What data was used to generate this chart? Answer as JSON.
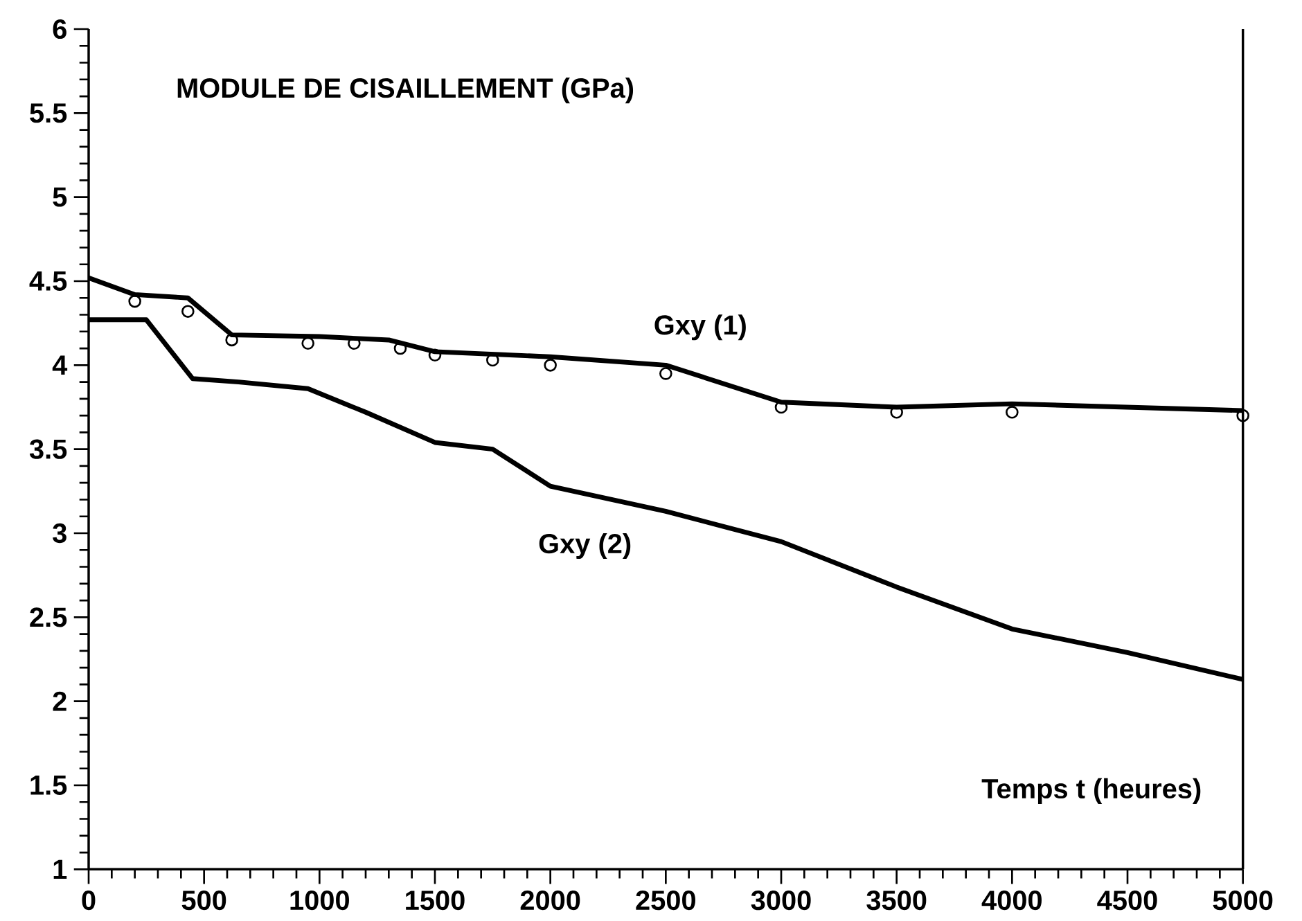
{
  "chart_data": {
    "type": "line",
    "title": "MODULE DE CISAILLEMENT (GPa)",
    "xlabel": "Temps t (heures)",
    "xlim": [
      0,
      5000
    ],
    "xticks": [
      0,
      500,
      1000,
      1500,
      2000,
      2500,
      3000,
      3500,
      4000,
      4500,
      5000
    ],
    "ylim": [
      1,
      6
    ],
    "yticks": [
      1,
      1.5,
      2,
      2.5,
      3,
      3.5,
      4,
      4.5,
      5,
      5.5,
      6
    ],
    "legend": false,
    "grid": false,
    "series": [
      {
        "name": "Gxy (1)",
        "color": "#000000",
        "marker": "none",
        "x": [
          0,
          200,
          430,
          620,
          1000,
          1300,
          1500,
          2000,
          2500,
          3000,
          3500,
          4000,
          5000
        ],
        "values": [
          4.52,
          4.42,
          4.4,
          4.18,
          4.17,
          4.15,
          4.08,
          4.05,
          4.0,
          3.78,
          3.75,
          3.77,
          3.73
        ]
      },
      {
        "color": "#000000",
        "type": "scatter",
        "marker": "circle",
        "x": [
          200,
          430,
          620,
          950,
          1150,
          1350,
          1500,
          1750,
          2000,
          2500,
          3000,
          3500,
          4000,
          5000
        ],
        "values": [
          4.38,
          4.32,
          4.15,
          4.13,
          4.13,
          4.1,
          4.06,
          4.03,
          4.0,
          3.95,
          3.75,
          3.72,
          3.72,
          3.7
        ]
      },
      {
        "name": "Gxy (2)",
        "color": "#000000",
        "marker": "none",
        "x": [
          0,
          250,
          450,
          650,
          950,
          1200,
          1500,
          1750,
          2000,
          2500,
          3000,
          3500,
          4000,
          4500,
          5000
        ],
        "values": [
          4.27,
          4.27,
          3.92,
          3.9,
          3.86,
          3.72,
          3.54,
          3.5,
          3.28,
          3.13,
          2.95,
          2.68,
          2.43,
          2.29,
          2.13
        ]
      }
    ]
  }
}
